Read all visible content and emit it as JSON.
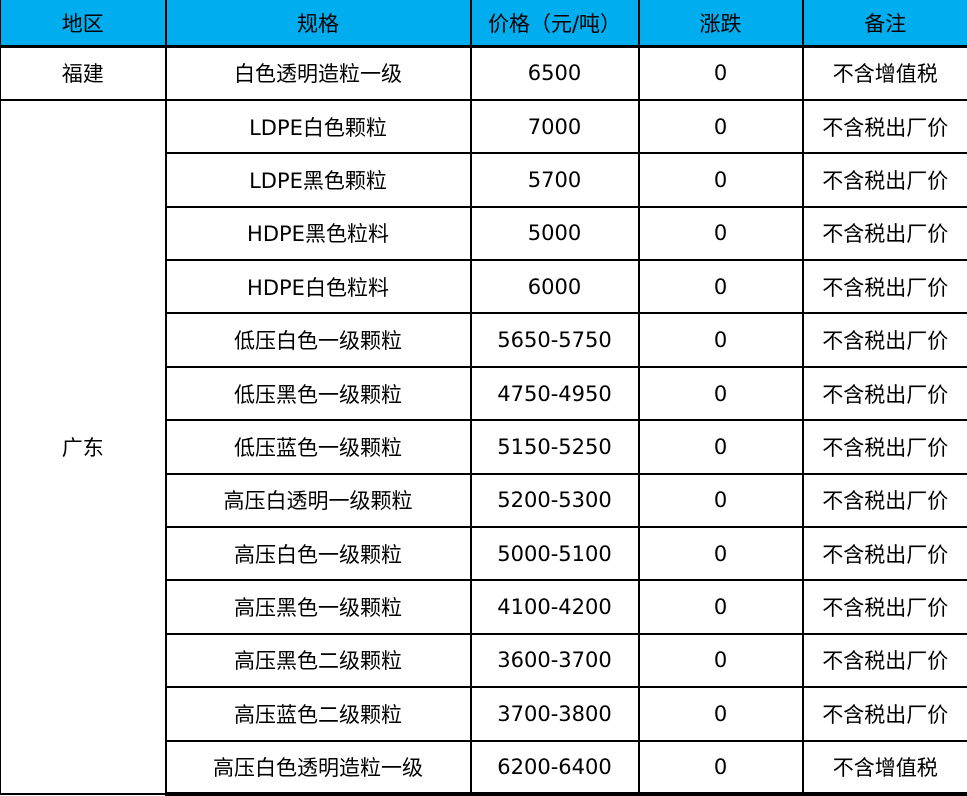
{
  "colors": {
    "header_bg": "#00AEEF",
    "border": "#000000",
    "text": "#000000"
  },
  "table": {
    "headers": {
      "region": "地区",
      "spec": "规格",
      "price": "价格（元/吨）",
      "change": "涨跌",
      "note": "备注"
    },
    "regions": [
      {
        "name": "福建",
        "rows": [
          {
            "spec": "白色透明造粒一级",
            "price": "6500",
            "change": "0",
            "note": "不含增值税"
          }
        ]
      },
      {
        "name": "广东",
        "rows": [
          {
            "spec": "LDPE白色颗粒",
            "price": "7000",
            "change": "0",
            "note": "不含税出厂价"
          },
          {
            "spec": "LDPE黑色颗粒",
            "price": "5700",
            "change": "0",
            "note": "不含税出厂价"
          },
          {
            "spec": "HDPE黑色粒料",
            "price": "5000",
            "change": "0",
            "note": "不含税出厂价"
          },
          {
            "spec": "HDPE白色粒料",
            "price": "6000",
            "change": "0",
            "note": "不含税出厂价"
          },
          {
            "spec": "低压白色一级颗粒",
            "price": "5650-5750",
            "change": "0",
            "note": "不含税出厂价"
          },
          {
            "spec": "低压黑色一级颗粒",
            "price": "4750-4950",
            "change": "0",
            "note": "不含税出厂价"
          },
          {
            "spec": "低压蓝色一级颗粒",
            "price": "5150-5250",
            "change": "0",
            "note": "不含税出厂价"
          },
          {
            "spec": "高压白透明一级颗粒",
            "price": "5200-5300",
            "change": "0",
            "note": "不含税出厂价"
          },
          {
            "spec": "高压白色一级颗粒",
            "price": "5000-5100",
            "change": "0",
            "note": "不含税出厂价"
          },
          {
            "spec": "高压黑色一级颗粒",
            "price": "4100-4200",
            "change": "0",
            "note": "不含税出厂价"
          },
          {
            "spec": "高压黑色二级颗粒",
            "price": "3600-3700",
            "change": "0",
            "note": "不含税出厂价"
          },
          {
            "spec": "高压蓝色二级颗粒",
            "price": "3700-3800",
            "change": "0",
            "note": "不含税出厂价"
          },
          {
            "spec": "高压白色透明造粒一级",
            "price": "6200-6400",
            "change": "0",
            "note": "不含增值税"
          }
        ]
      }
    ]
  }
}
